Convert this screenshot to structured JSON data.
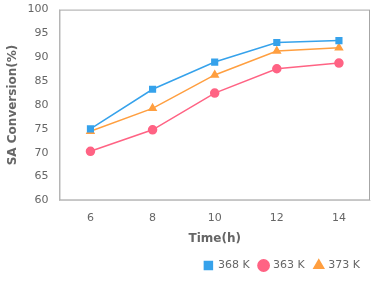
{
  "chart_data": {
    "type": "line",
    "xlabel": "Time(h)",
    "ylabel": "SA Conversion(%)",
    "x": [
      6,
      8,
      10,
      12,
      14
    ],
    "series": [
      {
        "name": "368 K",
        "values": [
          75.0,
          83.3,
          89.0,
          93.1,
          93.5
        ],
        "marker": "square",
        "line_style": "solid"
      },
      {
        "name": "363 K",
        "values": [
          70.3,
          74.8,
          82.5,
          87.6,
          88.8
        ],
        "marker": "circle",
        "line_style": "solid"
      },
      {
        "name": "373 K",
        "values": [
          74.5,
          79.3,
          86.3,
          91.3,
          92.0
        ],
        "marker": "triangle",
        "line_style": "solid"
      }
    ],
    "xlim": [
      5,
      15
    ],
    "ylim": [
      60,
      100
    ],
    "xticks": [
      6,
      8,
      10,
      12,
      14
    ],
    "yticks": [
      60,
      65,
      70,
      75,
      80,
      85,
      90,
      95,
      100
    ],
    "grid": false,
    "legend": "lower right"
  }
}
